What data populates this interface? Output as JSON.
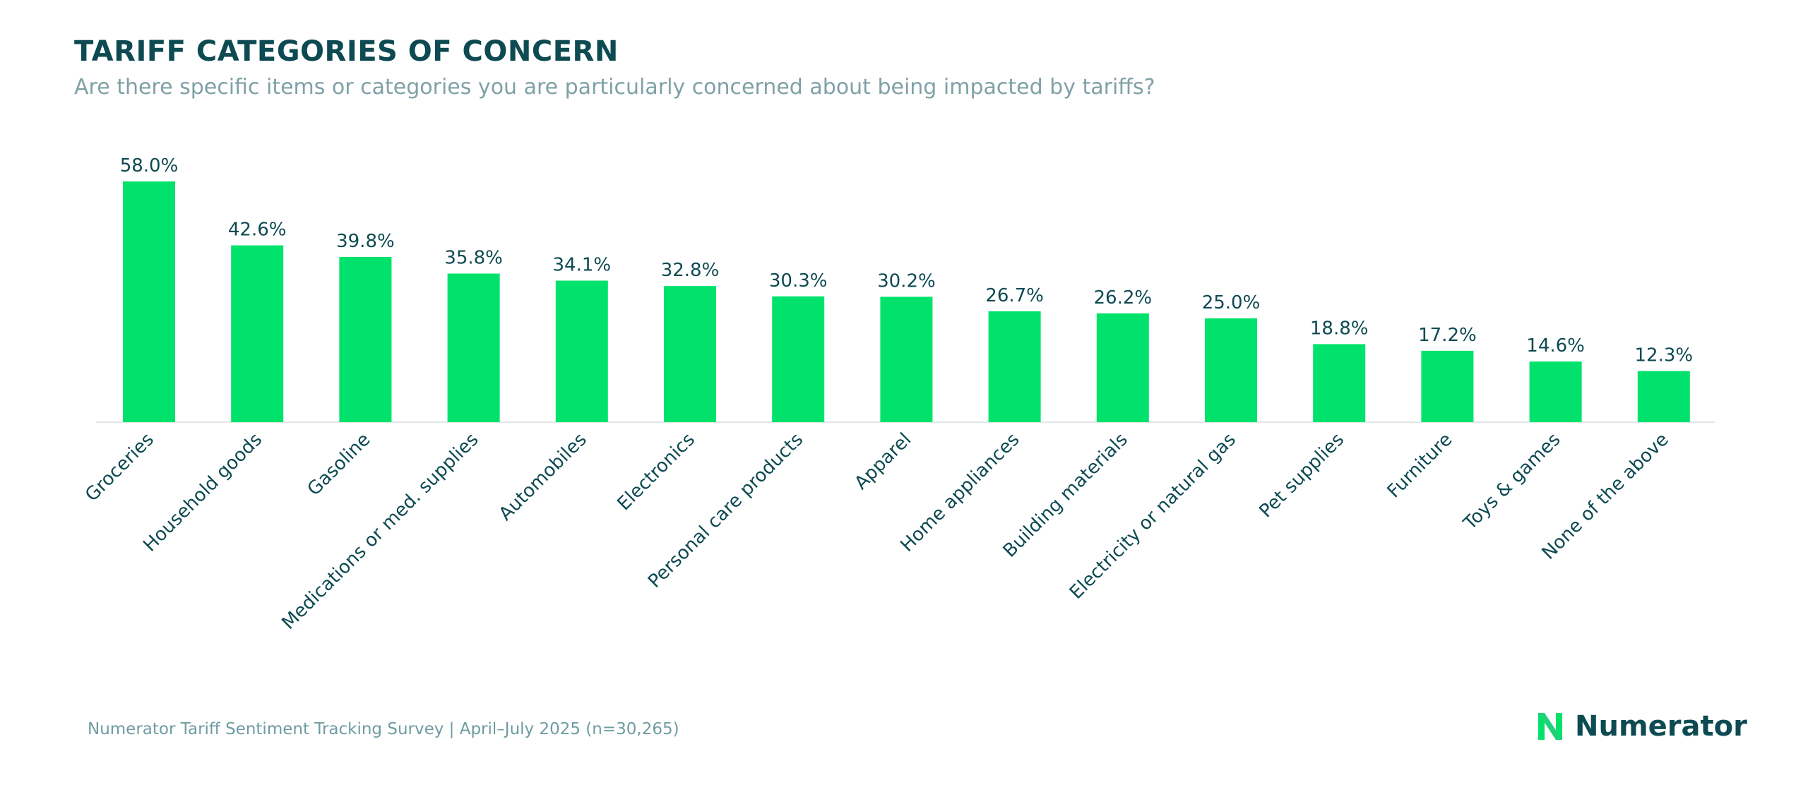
{
  "title": "TARIFF CATEGORIES OF CONCERN",
  "subtitle": "Are there specific items or categories you are particularly concerned about being impacted by tariffs?",
  "footer": "Numerator Tariff Sentiment Tracking Survey | April–July 2025 (n=30,265)",
  "logo": {
    "text": "Numerator",
    "icon": "numerator-n-logo-icon"
  },
  "colors": {
    "bar": "#00e26b",
    "text": "#0d4a52",
    "subtitle": "#7fa1a6",
    "axis": "#e2e8e8"
  },
  "chart_data": {
    "type": "bar",
    "categories": [
      "Groceries",
      "Household goods",
      "Gasoline",
      "Medications or med. supplies",
      "Automobiles",
      "Electronics",
      "Personal care products",
      "Apparel",
      "Home appliances",
      "Building materials",
      "Electricity or natural gas",
      "Pet supplies",
      "Furniture",
      "Toys & games",
      "None of the above"
    ],
    "values": [
      58.0,
      42.6,
      39.8,
      35.8,
      34.1,
      32.8,
      30.3,
      30.2,
      26.7,
      26.2,
      25.0,
      18.8,
      17.2,
      14.6,
      12.3
    ],
    "data_labels": [
      "58.0%",
      "42.6%",
      "39.8%",
      "35.8%",
      "34.1%",
      "32.8%",
      "30.3%",
      "30.2%",
      "26.7%",
      "26.2%",
      "25.0%",
      "18.8%",
      "17.2%",
      "14.6%",
      "12.3%"
    ],
    "ylim": [
      0,
      58
    ],
    "grid": false,
    "legend": "none"
  }
}
